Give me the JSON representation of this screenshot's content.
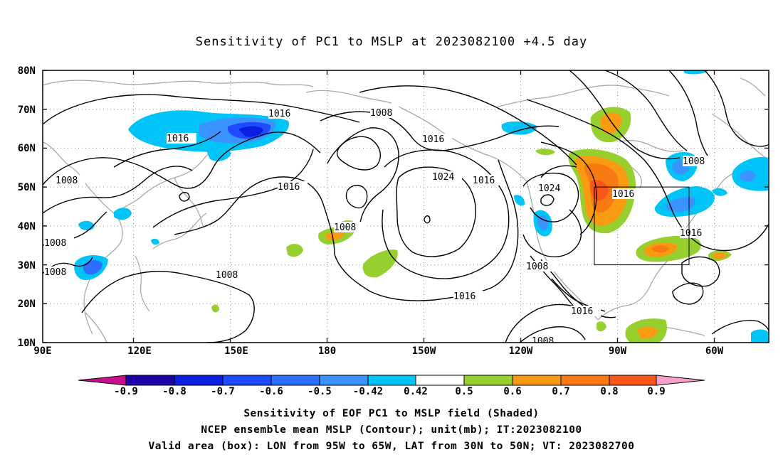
{
  "title": "Sensitivity of PC1 to MSLP at 2023082100 +4.5 day",
  "map": {
    "lat_labels": [
      "80N",
      "70N",
      "60N",
      "50N",
      "40N",
      "30N",
      "20N",
      "10N"
    ],
    "lon_labels": [
      "90E",
      "120E",
      "150E",
      "180",
      "150W",
      "120W",
      "90W",
      "60W"
    ],
    "contour_labels": [
      {
        "id": "c1016a",
        "text": "1016"
      },
      {
        "id": "c1016b",
        "text": "1016"
      },
      {
        "id": "c1008a",
        "text": "1008"
      },
      {
        "id": "c1016c",
        "text": "1016"
      },
      {
        "id": "c1008b",
        "text": "1008"
      },
      {
        "id": "c1008c",
        "text": "1008"
      },
      {
        "id": "c1008d",
        "text": "1008"
      },
      {
        "id": "c1008e",
        "text": "1008"
      },
      {
        "id": "c1008f",
        "text": "1008"
      },
      {
        "id": "c1016d",
        "text": "1016"
      },
      {
        "id": "c1024a",
        "text": "1024"
      },
      {
        "id": "c1016e",
        "text": "1016"
      },
      {
        "id": "c1016f",
        "text": "1016"
      },
      {
        "id": "c1024b",
        "text": "1024"
      },
      {
        "id": "c1008g",
        "text": "1008"
      },
      {
        "id": "c1016g",
        "text": "1016"
      },
      {
        "id": "c1008h",
        "text": "1008"
      },
      {
        "id": "c1016h",
        "text": "1016"
      },
      {
        "id": "c1008i",
        "text": "1008"
      },
      {
        "id": "c1016i",
        "text": "1016"
      }
    ],
    "colors": {
      "neg_09": "#1d00a8",
      "neg_08": "#0a1fe0",
      "neg_07": "#1e4bff",
      "neg_06": "#2d6dff",
      "neg_05": "#3b93ff",
      "neg_042": "#00c4f7",
      "neutral": "#ffffff",
      "pos_042": "#97cf2e",
      "pos_05": "#f99b12",
      "pos_06": "#f97a12",
      "pos_07": "#f9561a",
      "pos_08": "#ff1a0a",
      "under": "#c8108e",
      "over": "#f8a0c8",
      "coast": "#a9a9a9",
      "contour": "#000000"
    }
  },
  "colorbar": {
    "labels": [
      "-0.9",
      "-0.8",
      "-0.7",
      "-0.6",
      "-0.5",
      "-0.42",
      "0.42",
      "0.5",
      "0.6",
      "0.7",
      "0.8",
      "0.9"
    ]
  },
  "captions": {
    "line1": "Sensitivity of EOF PC1 to MSLP field (Shaded)",
    "line2": "NCEP ensemble mean MSLP (Contour); unit(mb); IT:2023082100",
    "line3": "Valid area (box): LON from 95W to 65W, LAT from 30N to 50N; VT: 2023082700"
  }
}
